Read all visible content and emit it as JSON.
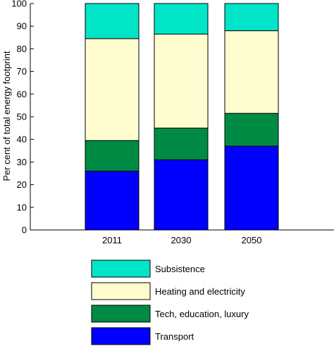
{
  "chart_data": {
    "type": "bar",
    "stacked": true,
    "title": "",
    "xlabel": "",
    "ylabel": "Per cent of total energy footprint",
    "ylim": [
      0,
      100
    ],
    "yticks": [
      0,
      10,
      20,
      30,
      40,
      50,
      60,
      70,
      80,
      90,
      100
    ],
    "grid": false,
    "legend_position": "bottom",
    "categories": [
      "2011",
      "2030",
      "2050"
    ],
    "series": [
      {
        "name": "Transport",
        "values": [
          26,
          31,
          37
        ],
        "color": "#0000ff"
      },
      {
        "name": "Tech, education, luxury",
        "values": [
          13.5,
          14,
          14.5
        ],
        "color": "#008b45"
      },
      {
        "name": "Heating and electricity",
        "values": [
          45,
          41.5,
          36.5
        ],
        "color": "#fffdd0"
      },
      {
        "name": "Subsistence",
        "values": [
          15.5,
          13.5,
          12
        ],
        "color": "#00e5c8"
      }
    ],
    "legend_order": [
      "Subsistence",
      "Heating and electricity",
      "Tech, education, luxury",
      "Transport"
    ]
  }
}
